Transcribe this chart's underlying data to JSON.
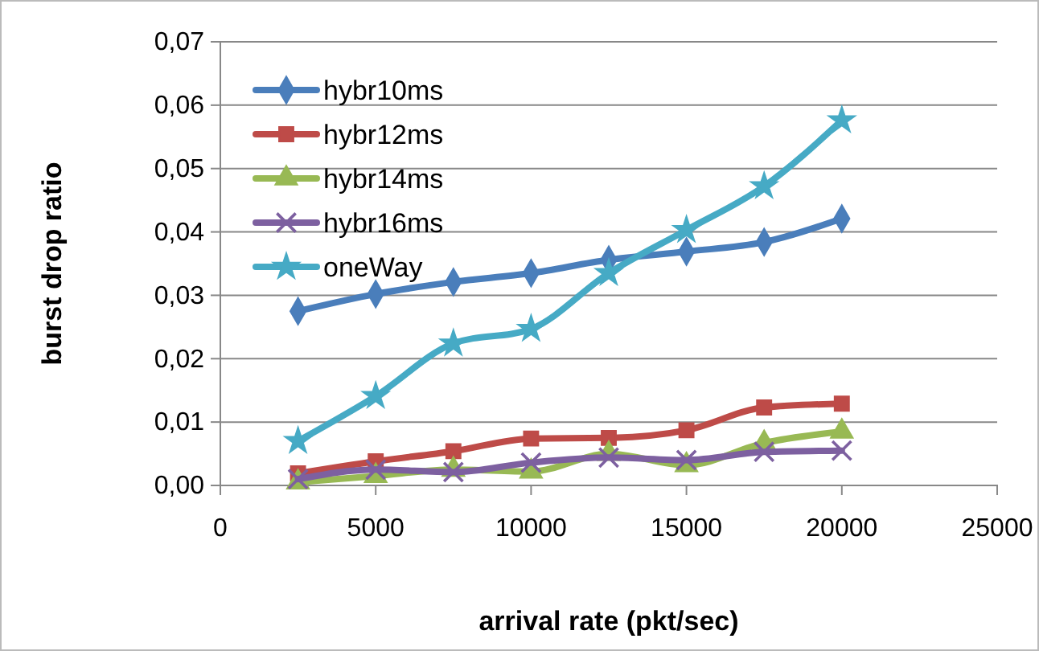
{
  "chart_data": {
    "type": "line",
    "xlabel": "arrival rate (pkt/sec)",
    "ylabel": "burst drop ratio",
    "x": [
      2500,
      5000,
      7500,
      10000,
      12500,
      15000,
      17500,
      20000
    ],
    "series": [
      {
        "name": "hybr10ms",
        "color": "#4a7ebb",
        "marker": "diamond",
        "values": [
          0.0275,
          0.0302,
          0.0321,
          0.0335,
          0.0356,
          0.0369,
          0.0384,
          0.0421
        ]
      },
      {
        "name": "hybr12ms",
        "color": "#be4b48",
        "marker": "square",
        "values": [
          0.0019,
          0.0038,
          0.0054,
          0.0074,
          0.0075,
          0.0087,
          0.0123,
          0.0129
        ]
      },
      {
        "name": "hybr14ms",
        "color": "#98b954",
        "marker": "triangle",
        "values": [
          0.0005,
          0.0015,
          0.0025,
          0.0022,
          0.005,
          0.0032,
          0.0067,
          0.0085
        ]
      },
      {
        "name": "hybr16ms",
        "color": "#7d60a0",
        "marker": "cross",
        "values": [
          0.001,
          0.0025,
          0.0021,
          0.0036,
          0.0044,
          0.004,
          0.0053,
          0.0055
        ]
      },
      {
        "name": "oneWay",
        "color": "#46aac5",
        "marker": "star",
        "values": [
          0.007,
          0.0141,
          0.0224,
          0.0247,
          0.0335,
          0.0403,
          0.0472,
          0.0576
        ]
      }
    ],
    "xlim": [
      0,
      25000
    ],
    "xticks": [
      0,
      5000,
      10000,
      15000,
      20000,
      25000
    ],
    "ylim": [
      0,
      0.07
    ],
    "yticks": [
      {
        "value": 0,
        "label": "0,00"
      },
      {
        "value": 0.01,
        "label": "0,01"
      },
      {
        "value": 0.02,
        "label": "0,02"
      },
      {
        "value": 0.03,
        "label": "0,03"
      },
      {
        "value": 0.04,
        "label": "0,04"
      },
      {
        "value": 0.05,
        "label": "0,05"
      },
      {
        "value": 0.06,
        "label": "0,06"
      },
      {
        "value": 0.07,
        "label": "0,07"
      }
    ],
    "grid": "y",
    "legend": "top left",
    "line_style": "solid"
  }
}
